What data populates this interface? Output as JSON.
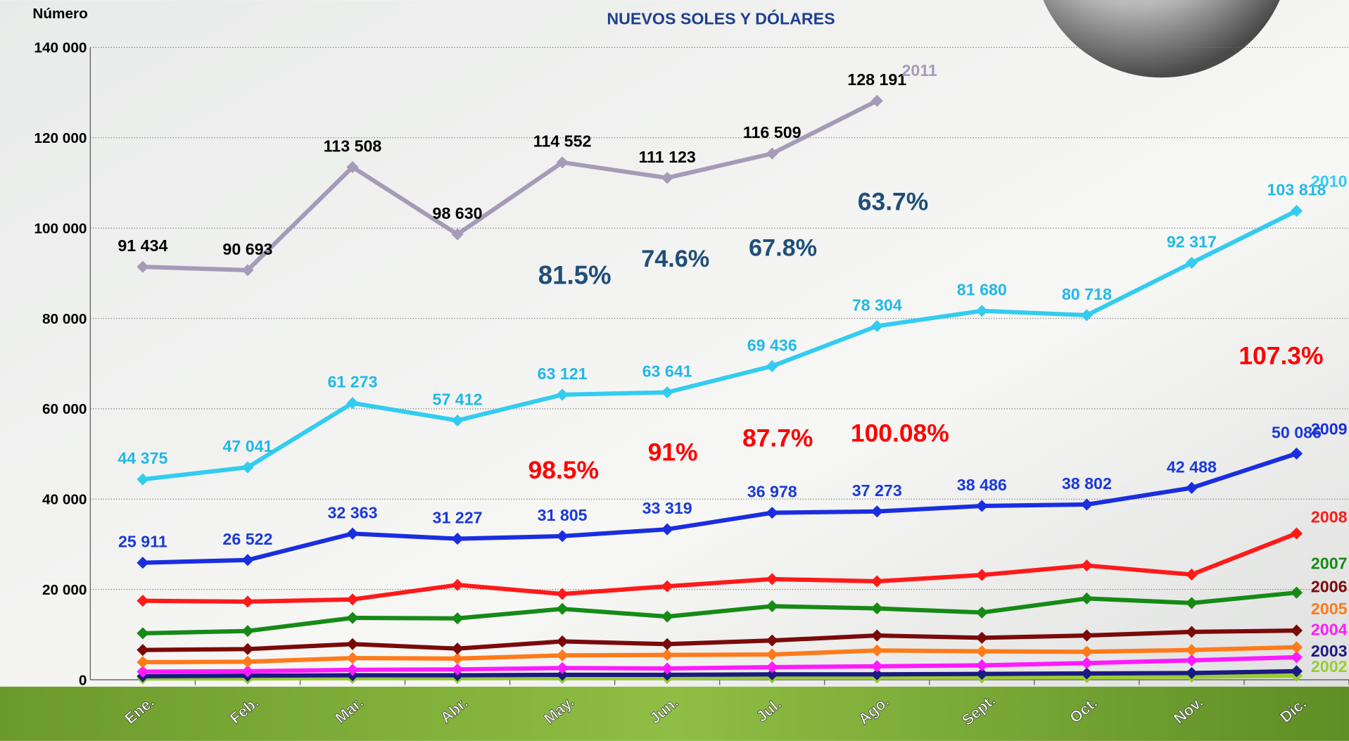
{
  "chart_data": {
    "type": "line",
    "title": "NUEVOS SOLES Y  DÓLARES",
    "y_label": "Número",
    "categories": [
      "Ene.",
      "Feb.",
      "Mar.",
      "Abr.",
      "May.",
      "Jun.",
      "Jul.",
      "Ago.",
      "Sept.",
      "Oct.",
      "Nov.",
      "Dic."
    ],
    "ylim": [
      0,
      140000
    ],
    "yticks": [
      0,
      {
        "value": 20000,
        "label": "20 000"
      },
      {
        "value": 40000,
        "label": "40 000"
      },
      {
        "value": 60000,
        "label": "60 000"
      },
      {
        "value": 80000,
        "label": "80 000"
      },
      {
        "value": 100000,
        "label": "100 000"
      },
      {
        "value": 120000,
        "label": "120 000"
      },
      {
        "value": 140000,
        "label": "140 000"
      }
    ],
    "grid": true,
    "series": [
      {
        "name": "2011",
        "color": "#a59bb8",
        "label_color": "#000000",
        "values": [
          91434,
          90693,
          113508,
          98630,
          114552,
          111123,
          116509,
          128191,
          null,
          null,
          null,
          null
        ],
        "value_labels": [
          "91 434",
          "90 693",
          "113 508",
          "98 630",
          "114 552",
          "111 123",
          "116 509",
          "128 191",
          null,
          null,
          null,
          null
        ]
      },
      {
        "name": "2010",
        "color": "#33ccf0",
        "label_color": "#22b8e8",
        "values": [
          44375,
          47041,
          61273,
          57412,
          63121,
          63641,
          69436,
          78304,
          81680,
          80718,
          92317,
          103818
        ],
        "value_labels": [
          "44 375",
          "47 041",
          "61 273",
          "57 412",
          "63 121",
          "63 641",
          "69 436",
          "78 304",
          "81 680",
          "80 718",
          "92 317",
          "103 818"
        ]
      },
      {
        "name": "2009",
        "color": "#1a2ee0",
        "label_color": "#1a3ad8",
        "values": [
          25911,
          26522,
          32363,
          31227,
          31805,
          33319,
          36978,
          37273,
          38486,
          38802,
          42488,
          50086
        ],
        "value_labels": [
          "25 911",
          "26 522",
          "32 363",
          "31 227",
          "31 805",
          "33 319",
          "36 978",
          "37 273",
          "38 486",
          "38 802",
          "42 488",
          "50 086"
        ]
      },
      {
        "name": "2008",
        "color": "#ff1a1a",
        "values": [
          17500,
          17300,
          17800,
          21000,
          19000,
          20700,
          22300,
          21800,
          23200,
          25300,
          23300,
          32400
        ]
      },
      {
        "name": "2007",
        "color": "#168a16",
        "values": [
          10300,
          10800,
          13700,
          13600,
          15700,
          14000,
          16300,
          15800,
          14900,
          18000,
          17000,
          19300
        ]
      },
      {
        "name": "2006",
        "color": "#7a0a0a",
        "values": [
          6600,
          6800,
          7900,
          6900,
          8500,
          7900,
          8700,
          9800,
          9300,
          9800,
          10600,
          10900
        ]
      },
      {
        "name": "2005",
        "color": "#ff7a1a",
        "values": [
          3900,
          4000,
          4800,
          4700,
          5400,
          5500,
          5600,
          6500,
          6300,
          6200,
          6600,
          7200
        ]
      },
      {
        "name": "2004",
        "color": "#ff1aff",
        "values": [
          1800,
          1900,
          2200,
          2300,
          2600,
          2500,
          2800,
          3000,
          3200,
          3700,
          4300,
          5000
        ]
      },
      {
        "name": "2003",
        "color": "#1a1a80",
        "values": [
          800,
          900,
          1000,
          1000,
          1100,
          1100,
          1200,
          1200,
          1300,
          1400,
          1500,
          1900
        ]
      },
      {
        "name": "2002",
        "color": "#99cc33",
        "values": [
          300,
          300,
          400,
          400,
          400,
          400,
          500,
          500,
          500,
          600,
          700,
          900
        ]
      }
    ],
    "annotations": [
      {
        "text": "81.5%",
        "color": "#1f4e79"
      },
      {
        "text": "74.6%",
        "color": "#1f4e79"
      },
      {
        "text": "67.8%",
        "color": "#1f4e79"
      },
      {
        "text": "63.7%",
        "color": "#1f4e79"
      },
      {
        "text": "98.5%",
        "color": "#ff0000"
      },
      {
        "text": "91%",
        "color": "#ff0000"
      },
      {
        "text": "87.7%",
        "color": "#ff0000"
      },
      {
        "text": "100.08%",
        "color": "#ff0000"
      },
      {
        "text": "107.3%",
        "color": "#ff0000"
      }
    ]
  }
}
